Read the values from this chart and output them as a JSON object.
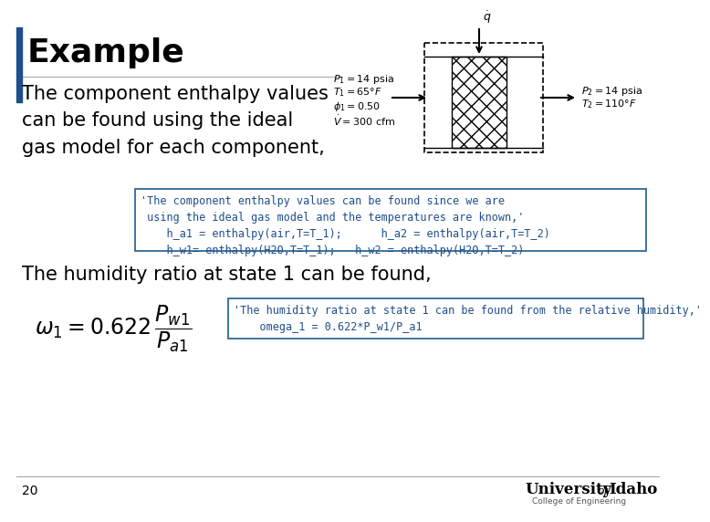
{
  "title": "Example",
  "blue_bar_color": "#1F4E8C",
  "title_fontsize": 26,
  "body_text1": "The component enthalpy values\ncan be found using the ideal\ngas model for each component,",
  "body_text2": "The humidity ratio at state 1 can be found,",
  "code_box1_lines": [
    "'The component enthalpy values can be found since we are",
    " using the ideal gas model and the temperatures are known,'",
    "    h_a1 = enthalpy(air,T=T_1);      h_a2 = enthalpy(air,T=T_2)",
    "    h_w1= enthalpy(H2O,T=T_1);   h_w2 = enthalpy(H2O,T=T_2)"
  ],
  "code_box2_lines": [
    "'The humidity ratio at state 1 can be found from the relative humidity,'",
    "    omega_1 = 0.622*P_w1/P_a1"
  ],
  "page_num": "20",
  "slide_bg": "#FFFFFF",
  "code_box_border": "#1F5C8B",
  "code_text_color": "#1F4E8C",
  "body_fontsize": 15,
  "code_fontsize": 8.5,
  "diagram_left": [
    "$P_1 = 14$ psia",
    "$T_1 = 65°F$",
    "$\\phi_1 = 0.50$",
    "$\\dot{V} = 300$ cfm"
  ],
  "diagram_right": [
    "$P_2 = 14$ psia",
    "$T_2 = 110°F$"
  ]
}
